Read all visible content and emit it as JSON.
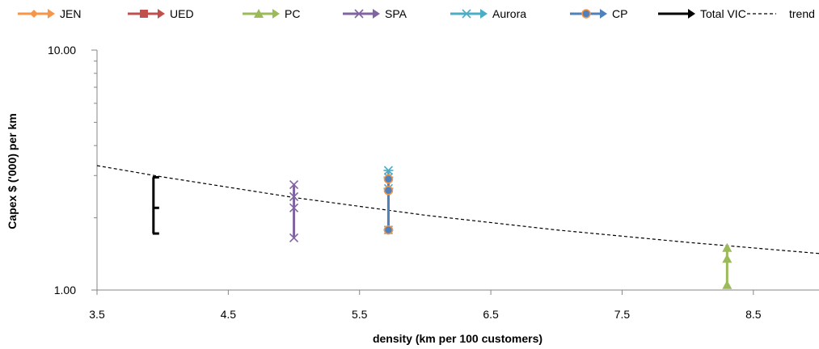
{
  "chart_data": {
    "type": "line",
    "xlabel": "density (km per 100 customers)",
    "ylabel": "Capex $ ('000) per km",
    "x_scale": "linear",
    "y_scale": "log",
    "xlim": [
      3.5,
      9.0
    ],
    "ylim": [
      1.0,
      10.0
    ],
    "x_ticks": [
      "3.5",
      "4.5",
      "5.5",
      "6.5",
      "7.5",
      "8.5"
    ],
    "y_ticks": [
      "1.00",
      "10.00"
    ],
    "grid": false,
    "legend_position": "top",
    "series": [
      {
        "name": "JEN",
        "color": "#F79646",
        "marker": "diamond",
        "points": []
      },
      {
        "name": "UED",
        "color": "#C0504D",
        "marker": "square",
        "points": []
      },
      {
        "name": "PC",
        "color": "#9BBB59",
        "marker": "triangle",
        "points": [
          [
            8.3,
            1.05
          ],
          [
            8.3,
            1.35
          ],
          [
            8.3,
            1.5
          ]
        ]
      },
      {
        "name": "SPA",
        "color": "#8064A2",
        "marker": "x",
        "points": [
          [
            5.0,
            1.65
          ],
          [
            5.0,
            2.2
          ],
          [
            5.0,
            2.45
          ],
          [
            5.0,
            2.75
          ]
        ]
      },
      {
        "name": "Aurora",
        "color": "#4BACC6",
        "marker": "star",
        "points": [
          [
            5.72,
            1.78
          ],
          [
            5.72,
            2.65
          ],
          [
            5.72,
            2.95
          ],
          [
            5.72,
            3.15
          ]
        ]
      },
      {
        "name": "CP",
        "color": "#4F81BD",
        "marker": "circle",
        "points": [
          [
            5.72,
            1.78
          ],
          [
            5.72,
            2.6
          ],
          [
            5.72,
            2.9
          ]
        ]
      },
      {
        "name": "Total VIC",
        "color": "#000000",
        "marker": "dash",
        "points": [
          [
            3.93,
            1.72
          ],
          [
            3.93,
            2.2
          ],
          [
            3.93,
            2.95
          ]
        ]
      }
    ],
    "trend": {
      "name": "trend",
      "color": "#000000",
      "points": [
        [
          3.5,
          3.3
        ],
        [
          4.0,
          2.96
        ],
        [
          5.0,
          2.43
        ],
        [
          6.0,
          2.05
        ],
        [
          7.0,
          1.78
        ],
        [
          8.0,
          1.58
        ],
        [
          9.0,
          1.42
        ]
      ]
    }
  }
}
